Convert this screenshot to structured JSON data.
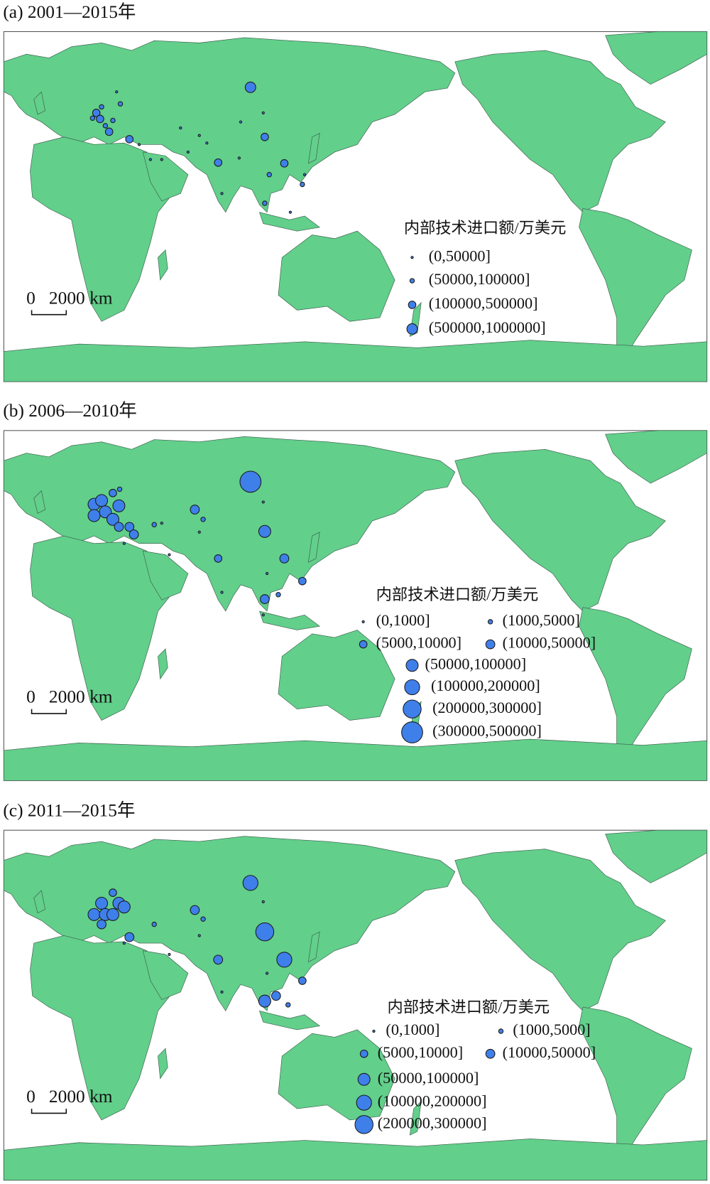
{
  "panels": [
    {
      "title": "(a) 2001—2015年",
      "legend": {
        "title": "内部技术进口额/万美元",
        "items": [
          "(0,50000]",
          "(50000,100000]",
          "(100000,500000]",
          "(500000,1000000]"
        ]
      },
      "scale": {
        "zero": "0",
        "distance": "2000 km"
      }
    },
    {
      "title": "(b) 2006—2010年",
      "legend": {
        "title": "内部技术进口额/万美元",
        "items": [
          "(0,1000]",
          "(1000,5000]",
          "(5000,10000]",
          "(10000,50000]",
          "(50000,100000]",
          "(100000,200000]",
          "(200000,300000]",
          "(300000,500000]"
        ]
      },
      "scale": {
        "zero": "0",
        "distance": "2000 km"
      }
    },
    {
      "title": "(c) 2011—2015年",
      "legend": {
        "title": "内部技术进口额/万美元",
        "items": [
          "(0,1000]",
          "(1000,5000]",
          "(5000,10000]",
          "(10000,50000]",
          "(50000,100000]",
          "(100000,200000]",
          "(200000,300000]"
        ]
      },
      "scale": {
        "zero": "0",
        "distance": "2000 km"
      }
    }
  ]
}
